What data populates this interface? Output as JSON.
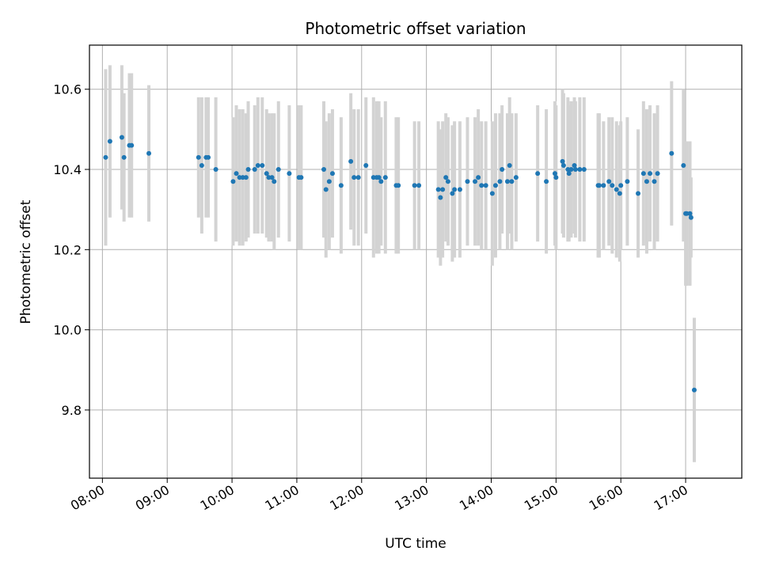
{
  "chart_data": {
    "type": "scatter",
    "title": "Photometric offset variation",
    "xlabel": "UTC time",
    "ylabel": "Photometric offset",
    "x_ticks": [
      "08:00",
      "09:00",
      "10:00",
      "11:00",
      "12:00",
      "13:00",
      "14:00",
      "15:00",
      "16:00",
      "17:00"
    ],
    "y_ticks": [
      "9.8",
      "10.0",
      "10.2",
      "10.4",
      "10.6"
    ],
    "xlim": [
      "07:48",
      "17:52"
    ],
    "ylim": [
      9.63,
      10.71
    ],
    "grid": true,
    "error_bar_color": "#d3d3d3",
    "point_color": "#1f77b4",
    "series": [
      {
        "x": [
          "08:03",
          "08:07",
          "08:18",
          "08:20",
          "08:25",
          "08:27",
          "08:43",
          "09:29",
          "09:32",
          "09:36",
          "09:38",
          "09:45",
          "10:01",
          "10:04",
          "10:07",
          "10:10",
          "10:13",
          "10:15",
          "10:21",
          "10:24",
          "10:28",
          "10:32",
          "10:34",
          "10:37",
          "10:39",
          "10:43",
          "10:53",
          "11:02",
          "11:04",
          "11:25",
          "11:27",
          "11:30",
          "11:33",
          "11:41",
          "11:50",
          "11:53",
          "11:57",
          "12:04",
          "12:11",
          "12:14",
          "12:16",
          "12:18",
          "12:22",
          "12:32",
          "12:34",
          "12:49",
          "12:53",
          "13:11",
          "13:13",
          "13:15",
          "13:18",
          "13:20",
          "13:24",
          "13:26",
          "13:31",
          "13:38",
          "13:45",
          "13:48",
          "13:51",
          "13:55",
          "14:01",
          "14:04",
          "14:08",
          "14:10",
          "14:15",
          "14:17",
          "14:19",
          "14:23",
          "14:43",
          "14:51",
          "14:59",
          "15:00",
          "15:06",
          "15:07",
          "15:11",
          "15:12",
          "15:14",
          "15:17",
          "15:18",
          "15:22",
          "15:26",
          "15:39",
          "15:40",
          "15:44",
          "15:49",
          "15:52",
          "15:56",
          "15:59",
          "16:00",
          "16:06",
          "16:16",
          "16:21",
          "16:24",
          "16:27",
          "16:31",
          "16:34",
          "16:47",
          "16:58",
          "17:00",
          "17:01",
          "17:04",
          "17:05",
          "17:08"
        ],
        "y": [
          10.43,
          10.47,
          10.48,
          10.43,
          10.46,
          10.46,
          10.44,
          10.43,
          10.41,
          10.43,
          10.43,
          10.4,
          10.37,
          10.39,
          10.38,
          10.38,
          10.38,
          10.4,
          10.4,
          10.41,
          10.41,
          10.39,
          10.38,
          10.38,
          10.37,
          10.4,
          10.39,
          10.38,
          10.38,
          10.4,
          10.35,
          10.37,
          10.39,
          10.36,
          10.42,
          10.38,
          10.38,
          10.41,
          10.38,
          10.38,
          10.38,
          10.37,
          10.38,
          10.36,
          10.36,
          10.36,
          10.36,
          10.35,
          10.33,
          10.35,
          10.38,
          10.37,
          10.34,
          10.35,
          10.35,
          10.37,
          10.37,
          10.38,
          10.36,
          10.36,
          10.34,
          10.36,
          10.37,
          10.4,
          10.37,
          10.41,
          10.37,
          10.38,
          10.39,
          10.37,
          10.39,
          10.38,
          10.42,
          10.41,
          10.4,
          10.39,
          10.4,
          10.41,
          10.4,
          10.4,
          10.4,
          10.36,
          10.36,
          10.36,
          10.37,
          10.36,
          10.35,
          10.34,
          10.36,
          10.37,
          10.34,
          10.39,
          10.37,
          10.39,
          10.37,
          10.39,
          10.44,
          10.41,
          10.29,
          10.29,
          10.29,
          10.28,
          9.85
        ],
        "yerr": [
          0.22,
          0.19,
          0.18,
          0.16,
          0.18,
          0.18,
          0.17,
          0.15,
          0.17,
          0.15,
          0.15,
          0.18,
          0.16,
          0.17,
          0.17,
          0.17,
          0.16,
          0.17,
          0.16,
          0.17,
          0.17,
          0.16,
          0.16,
          0.16,
          0.17,
          0.17,
          0.17,
          0.18,
          0.18,
          0.17,
          0.17,
          0.17,
          0.16,
          0.17,
          0.17,
          0.17,
          0.17,
          0.17,
          0.2,
          0.19,
          0.19,
          0.16,
          0.19,
          0.17,
          0.17,
          0.16,
          0.16,
          0.17,
          0.17,
          0.17,
          0.16,
          0.16,
          0.17,
          0.17,
          0.17,
          0.16,
          0.16,
          0.17,
          0.16,
          0.16,
          0.18,
          0.18,
          0.17,
          0.16,
          0.17,
          0.17,
          0.17,
          0.16,
          0.17,
          0.18,
          0.18,
          0.18,
          0.18,
          0.18,
          0.18,
          0.17,
          0.17,
          0.17,
          0.17,
          0.18,
          0.18,
          0.18,
          0.18,
          0.16,
          0.16,
          0.17,
          0.17,
          0.17,
          0.16,
          0.16,
          0.16,
          0.18,
          0.18,
          0.17,
          0.17,
          0.17,
          0.18,
          0.19,
          0.18,
          0.18,
          0.18,
          0.1,
          0.18
        ]
      }
    ]
  }
}
